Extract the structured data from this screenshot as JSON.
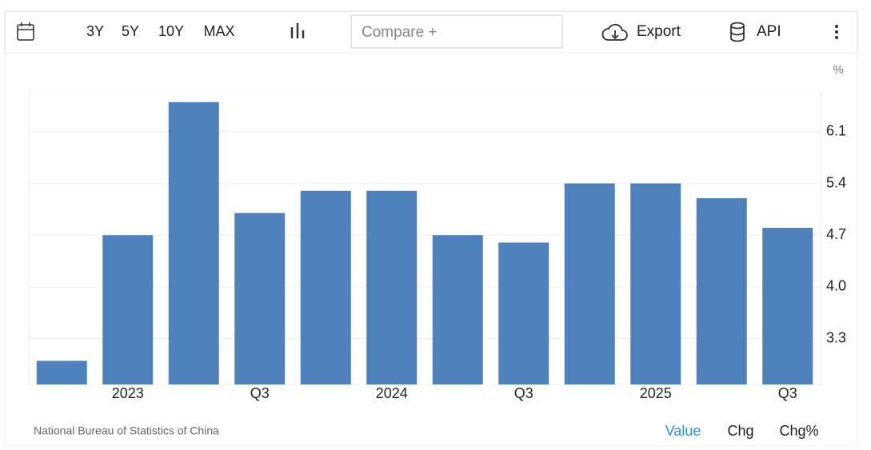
{
  "toolbar": {
    "ranges": [
      "3Y",
      "5Y",
      "10Y",
      "MAX"
    ],
    "compare": "Compare +",
    "export": "Export",
    "api": "API"
  },
  "chart_data": {
    "type": "bar",
    "y_unit": "%",
    "categories": [
      null,
      "2023",
      null,
      "Q3",
      null,
      "2024",
      null,
      "Q3",
      null,
      "2025",
      null,
      "Q3"
    ],
    "values": [
      3.0,
      4.7,
      6.5,
      5.0,
      5.3,
      5.3,
      4.7,
      4.6,
      5.4,
      5.4,
      5.2,
      4.8
    ],
    "color": "#4f81bd",
    "ylim": [
      2.68,
      6.66
    ],
    "yticks": [
      3.3,
      {
        "value": 4,
        "label": "4.0"
      },
      4.7,
      5.4,
      6.1
    ],
    "grid": true
  },
  "footer": {
    "source": "National Bureau of Statistics of China",
    "tabs": [
      "Value",
      "Chg",
      "Chg%"
    ]
  }
}
